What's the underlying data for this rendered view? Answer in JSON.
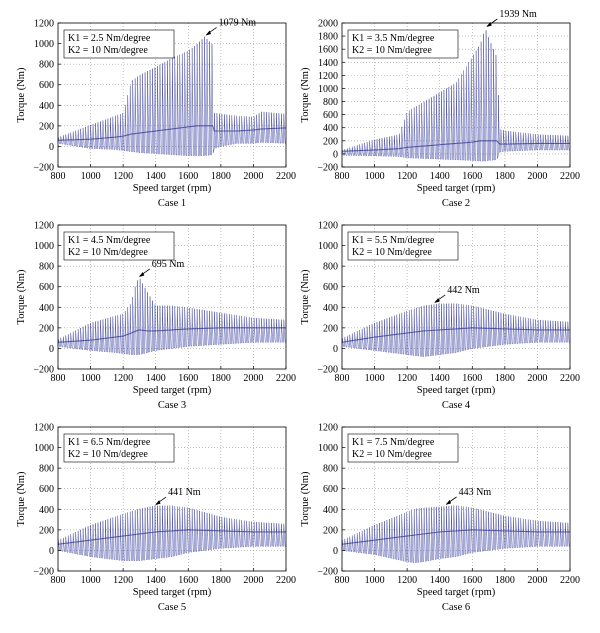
{
  "chart_data": [
    {
      "type": "line",
      "caption": "Case 1",
      "xlabel": "Speed target (rpm)",
      "ylabel": "Torque (Nm)",
      "xlim": [
        800,
        2200
      ],
      "ylim": [
        -200,
        1200
      ],
      "xticks": [
        800,
        1000,
        1200,
        1400,
        1600,
        1800,
        2000,
        2200
      ],
      "yticks": [
        -200,
        0,
        200,
        400,
        600,
        800,
        1000,
        1200
      ],
      "grid": true,
      "legend_lines": [
        "K1 = 2.5 Nm/degree",
        "K2 = 10 Nm/degree"
      ],
      "legend_placement": "top-left",
      "series_color": "#3a3fa0",
      "envelope": {
        "speed_rpm": [
          800,
          1000,
          1150,
          1200,
          1250,
          1300,
          1400,
          1500,
          1600,
          1650,
          1700,
          1750,
          1760,
          1800,
          1900,
          2000,
          2050,
          2200
        ],
        "max_torque_nm": [
          90,
          210,
          300,
          330,
          640,
          700,
          780,
          870,
          940,
          1000,
          1079,
          1000,
          330,
          320,
          300,
          290,
          340,
          320
        ],
        "min_torque_nm": [
          30,
          -20,
          -30,
          -40,
          -50,
          -60,
          -70,
          -80,
          -90,
          -90,
          -90,
          -80,
          -20,
          0,
          30,
          30,
          40,
          30
        ],
        "mean_torque_nm": [
          60,
          70,
          90,
          100,
          120,
          130,
          150,
          170,
          190,
          200,
          200,
          200,
          150,
          150,
          150,
          160,
          170,
          180
        ]
      },
      "annotation": {
        "text": "1079 Nm",
        "speed_rpm": 1700,
        "torque_nm": 1079
      }
    },
    {
      "type": "line",
      "caption": "Case 2",
      "xlabel": "Speed target (rpm)",
      "ylabel": "Torque (Nm)",
      "xlim": [
        800,
        2200
      ],
      "ylim": [
        -200,
        2000
      ],
      "xticks": [
        800,
        1000,
        1200,
        1400,
        1600,
        1800,
        2000,
        2200
      ],
      "yticks": [
        -200,
        0,
        200,
        400,
        600,
        800,
        1000,
        1200,
        1400,
        1600,
        1800,
        2000
      ],
      "grid": true,
      "legend_lines": [
        "K1 = 3.5 Nm/degree",
        "K2 = 10 Nm/degree"
      ],
      "legend_placement": "top-left",
      "series_color": "#3a3fa0",
      "envelope": {
        "speed_rpm": [
          800,
          1000,
          1150,
          1200,
          1300,
          1400,
          1500,
          1600,
          1650,
          1680,
          1700,
          1750,
          1770,
          1800,
          2000,
          2200
        ],
        "max_torque_nm": [
          60,
          220,
          300,
          650,
          800,
          950,
          1100,
          1500,
          1700,
          1939,
          1800,
          1500,
          380,
          360,
          300,
          280
        ],
        "min_torque_nm": [
          -20,
          -30,
          -40,
          -60,
          -70,
          -80,
          -90,
          -100,
          -110,
          -110,
          -100,
          -90,
          30,
          40,
          60,
          60
        ],
        "mean_torque_nm": [
          40,
          60,
          80,
          100,
          120,
          140,
          160,
          180,
          200,
          200,
          200,
          200,
          150,
          150,
          160,
          160
        ]
      },
      "annotation": {
        "text": "1939 Nm",
        "speed_rpm": 1680,
        "torque_nm": 1939
      }
    },
    {
      "type": "line",
      "caption": "Case 3",
      "xlabel": "Speed target (rpm)",
      "ylabel": "Torque (Nm)",
      "xlim": [
        800,
        2200
      ],
      "ylim": [
        -200,
        1200
      ],
      "xticks": [
        800,
        1000,
        1200,
        1400,
        1600,
        1800,
        2000,
        2200
      ],
      "yticks": [
        -200,
        0,
        200,
        400,
        600,
        800,
        1000,
        1200
      ],
      "grid": true,
      "legend_lines": [
        "K1 = 4.5 Nm/degree",
        "K2 = 10 Nm/degree"
      ],
      "legend_placement": "top-left",
      "series_color": "#3a3fa0",
      "envelope": {
        "speed_rpm": [
          800,
          1000,
          1150,
          1200,
          1250,
          1280,
          1300,
          1350,
          1400,
          1500,
          1600,
          1800,
          2000,
          2200
        ],
        "max_torque_nm": [
          90,
          250,
          320,
          340,
          450,
          650,
          695,
          550,
          420,
          420,
          400,
          350,
          300,
          280
        ],
        "min_torque_nm": [
          20,
          -20,
          -40,
          -50,
          -60,
          -60,
          -60,
          -40,
          -20,
          0,
          20,
          40,
          60,
          60
        ],
        "mean_torque_nm": [
          60,
          80,
          110,
          120,
          150,
          170,
          180,
          170,
          170,
          180,
          190,
          200,
          200,
          200
        ]
      },
      "annotation": {
        "text": "695 Nm",
        "speed_rpm": 1290,
        "torque_nm": 695
      }
    },
    {
      "type": "line",
      "caption": "Case 4",
      "xlabel": "Speed target (rpm)",
      "ylabel": "Torque (Nm)",
      "xlim": [
        800,
        2200
      ],
      "ylim": [
        -200,
        1200
      ],
      "xticks": [
        800,
        1000,
        1200,
        1400,
        1600,
        1800,
        2000,
        2200
      ],
      "yticks": [
        -200,
        0,
        200,
        400,
        600,
        800,
        1000,
        1200
      ],
      "grid": true,
      "legend_lines": [
        "K1 = 5.5 Nm/degree",
        "K2 = 10 Nm/degree"
      ],
      "legend_placement": "top-left",
      "series_color": "#3a3fa0",
      "envelope": {
        "speed_rpm": [
          800,
          1000,
          1200,
          1300,
          1400,
          1500,
          1600,
          1800,
          2000,
          2200
        ],
        "max_torque_nm": [
          100,
          250,
          370,
          420,
          440,
          442,
          420,
          340,
          280,
          260
        ],
        "min_torque_nm": [
          20,
          -20,
          -60,
          -80,
          -60,
          -40,
          0,
          40,
          60,
          60
        ],
        "mean_torque_nm": [
          60,
          110,
          150,
          170,
          180,
          190,
          200,
          190,
          180,
          180
        ]
      },
      "annotation": {
        "text": "442 Nm",
        "speed_rpm": 1360,
        "torque_nm": 442
      }
    },
    {
      "type": "line",
      "caption": "Case 5",
      "xlabel": "Speed target (rpm)",
      "ylabel": "Torque (Nm)",
      "xlim": [
        800,
        2200
      ],
      "ylim": [
        -200,
        1200
      ],
      "xticks": [
        800,
        1000,
        1200,
        1400,
        1600,
        1800,
        2000,
        2200
      ],
      "yticks": [
        -200,
        0,
        200,
        400,
        600,
        800,
        1000,
        1200
      ],
      "grid": true,
      "legend_lines": [
        "K1 = 6.5 Nm/degree",
        "K2 = 10 Nm/degree"
      ],
      "legend_placement": "top-left",
      "series_color": "#3a3fa0",
      "envelope": {
        "speed_rpm": [
          800,
          1000,
          1200,
          1300,
          1400,
          1500,
          1600,
          1800,
          2000,
          2200
        ],
        "max_torque_nm": [
          100,
          250,
          360,
          410,
          441,
          440,
          420,
          330,
          280,
          260
        ],
        "min_torque_nm": [
          0,
          -60,
          -100,
          -100,
          -80,
          -60,
          -20,
          20,
          40,
          40
        ],
        "mean_torque_nm": [
          60,
          100,
          140,
          160,
          180,
          190,
          200,
          190,
          180,
          180
        ]
      },
      "annotation": {
        "text": "441 Nm",
        "speed_rpm": 1390,
        "torque_nm": 441
      }
    },
    {
      "type": "line",
      "caption": "Case 6",
      "xlabel": "Speed target (rpm)",
      "ylabel": "Torque (Nm)",
      "xlim": [
        800,
        2200
      ],
      "ylim": [
        -200,
        1200
      ],
      "xticks": [
        800,
        1000,
        1200,
        1400,
        1600,
        1800,
        2000,
        2200
      ],
      "yticks": [
        -200,
        0,
        200,
        400,
        600,
        800,
        1000,
        1200
      ],
      "grid": true,
      "legend_lines": [
        "K1 = 7.5 Nm/degree",
        "K2 = 10 Nm/degree"
      ],
      "legend_placement": "top-left",
      "series_color": "#3a3fa0",
      "envelope": {
        "speed_rpm": [
          800,
          1000,
          1200,
          1250,
          1300,
          1400,
          1500,
          1600,
          1800,
          2000,
          2200
        ],
        "max_torque_nm": [
          100,
          250,
          380,
          410,
          420,
          430,
          443,
          420,
          340,
          290,
          270
        ],
        "min_torque_nm": [
          0,
          -40,
          -110,
          -120,
          -110,
          -80,
          -60,
          -20,
          20,
          40,
          40
        ],
        "mean_torque_nm": [
          60,
          100,
          140,
          150,
          160,
          180,
          190,
          200,
          190,
          180,
          180
        ]
      },
      "annotation": {
        "text": "443 Nm",
        "speed_rpm": 1430,
        "torque_nm": 443
      }
    }
  ]
}
